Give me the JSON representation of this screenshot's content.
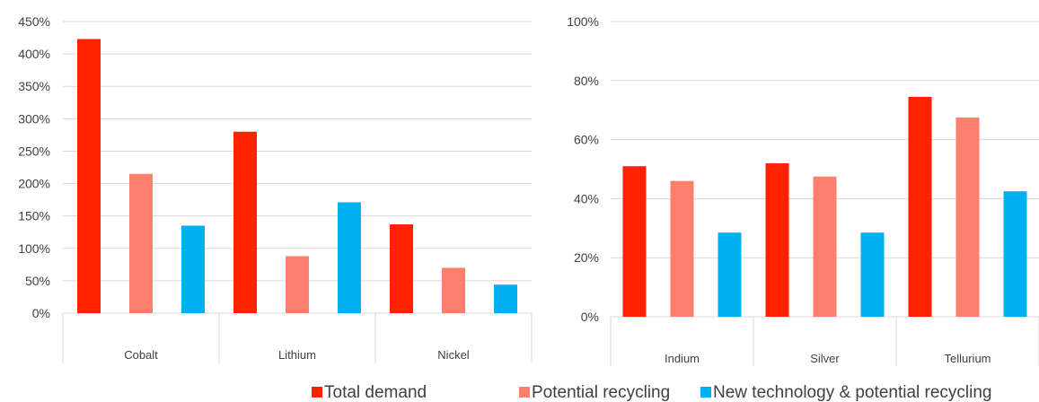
{
  "chart_data": [
    {
      "type": "bar",
      "categories": [
        "Cobalt",
        "Lithium",
        "Nickel"
      ],
      "series": [
        {
          "name": "Total demand",
          "values": [
            423,
            280,
            137
          ]
        },
        {
          "name": "Potential recycling",
          "values": [
            215,
            88,
            70
          ]
        },
        {
          "name": "New technology & potential recycling",
          "values": [
            135,
            171,
            44
          ]
        }
      ],
      "ylim": [
        0,
        450
      ],
      "yticks": [
        0,
        50,
        100,
        150,
        200,
        250,
        300,
        350,
        400,
        450
      ],
      "ytick_labels": [
        "0%",
        "50%",
        "100%",
        "150%",
        "200%",
        "250%",
        "300%",
        "350%",
        "400%",
        "450%"
      ],
      "grid": true,
      "legend": "bottom"
    },
    {
      "type": "bar",
      "categories": [
        "Indium",
        "Silver",
        "Tellurium"
      ],
      "series": [
        {
          "name": "Total demand",
          "values": [
            51,
            52,
            74.5
          ]
        },
        {
          "name": "Potential recycling",
          "values": [
            46,
            47.5,
            67.5
          ]
        },
        {
          "name": "New technology & potential recycling",
          "values": [
            28.5,
            28.5,
            42.5
          ]
        }
      ],
      "ylim": [
        0,
        100
      ],
      "yticks": [
        0,
        20,
        40,
        60,
        80,
        100
      ],
      "ytick_labels": [
        "0%",
        "20%",
        "40%",
        "60%",
        "80%",
        "100%"
      ],
      "grid": true,
      "legend": "bottom"
    }
  ],
  "legend": [
    {
      "label": "Total demand",
      "color": "#FF2200"
    },
    {
      "label": "Potential recycling",
      "color": "#FF7F6E"
    },
    {
      "label": "New technology & potential recycling",
      "color": "#00B0F0"
    }
  ]
}
